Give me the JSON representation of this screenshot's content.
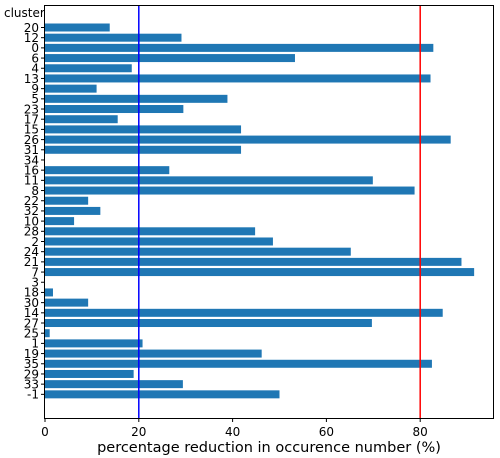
{
  "chart_data": {
    "type": "bar",
    "orientation": "horizontal",
    "ylabel": "cluster",
    "xlabel": "percentage reduction in occurence number (%)",
    "xlim": [
      0,
      96
    ],
    "xticks": [
      0,
      20,
      40,
      60,
      80
    ],
    "grid": false,
    "bar_color": "#1f77b4",
    "categories": [
      "20",
      "12",
      "0",
      "6",
      "4",
      "13",
      "9",
      "5",
      "23",
      "17",
      "15",
      "26",
      "31",
      "34",
      "16",
      "11",
      "8",
      "22",
      "32",
      "10",
      "28",
      "2",
      "24",
      "21",
      "7",
      "3",
      "18",
      "30",
      "14",
      "27",
      "25",
      "1",
      "19",
      "35",
      "29",
      "33",
      "-1"
    ],
    "values": [
      13.8,
      29.1,
      82.8,
      53.3,
      18.5,
      82.2,
      11.0,
      38.9,
      29.5,
      15.5,
      41.8,
      86.5,
      41.8,
      0.0,
      26.5,
      69.9,
      78.8,
      9.2,
      11.8,
      6.2,
      44.8,
      48.6,
      65.2,
      88.8,
      91.5,
      0.0,
      1.7,
      9.2,
      84.8,
      69.7,
      1.0,
      20.8,
      46.2,
      82.5,
      18.9,
      29.4,
      50.0
    ],
    "reference_lines": [
      {
        "value": 20,
        "color": "#0000ff"
      },
      {
        "value": 80,
        "color": "#ff0000"
      }
    ]
  }
}
